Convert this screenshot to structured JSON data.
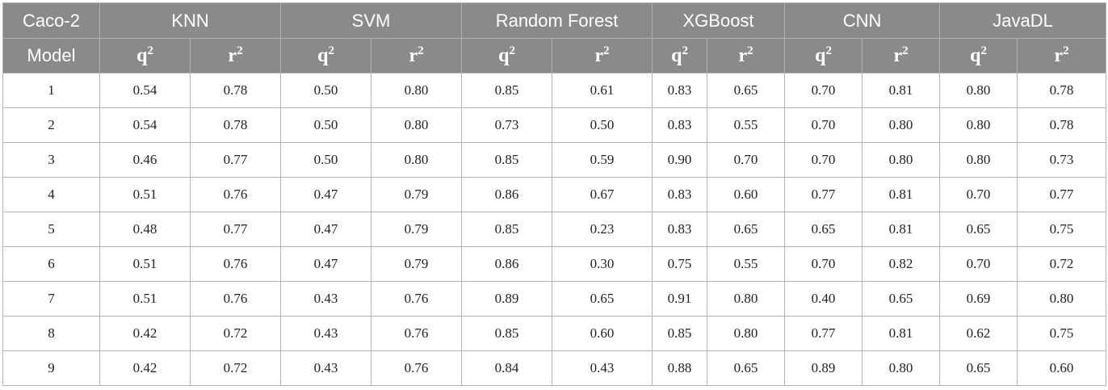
{
  "table": {
    "corner_top": "Caco-2",
    "corner_bottom": "Model",
    "methods": [
      "KNN",
      "SVM",
      "Random Forest",
      "XGBoost",
      "CNN",
      "JavaDL"
    ],
    "metric_base": "q",
    "metric_base_r": "r",
    "metric_exp": "2",
    "rows": [
      {
        "model": "1",
        "values": [
          "0.54",
          "0.78",
          "0.50",
          "0.80",
          "0.85",
          "0.61",
          "0.83",
          "0.65",
          "0.70",
          "0.81",
          "0.80",
          "0.78"
        ]
      },
      {
        "model": "2",
        "values": [
          "0.54",
          "0.78",
          "0.50",
          "0.80",
          "0.73",
          "0.50",
          "0.83",
          "0.55",
          "0.70",
          "0.80",
          "0.80",
          "0.78"
        ]
      },
      {
        "model": "3",
        "values": [
          "0.46",
          "0.77",
          "0.50",
          "0.80",
          "0.85",
          "0.59",
          "0.90",
          "0.70",
          "0.70",
          "0.80",
          "0.80",
          "0.73"
        ]
      },
      {
        "model": "4",
        "values": [
          "0.51",
          "0.76",
          "0.47",
          "0.79",
          "0.86",
          "0.67",
          "0.83",
          "0.60",
          "0.77",
          "0.81",
          "0.70",
          "0.77"
        ]
      },
      {
        "model": "5",
        "values": [
          "0.48",
          "0.77",
          "0.47",
          "0.79",
          "0.85",
          "0.23",
          "0.83",
          "0.65",
          "0.65",
          "0.81",
          "0.65",
          "0.75"
        ]
      },
      {
        "model": "6",
        "values": [
          "0.51",
          "0.76",
          "0.47",
          "0.79",
          "0.86",
          "0.30",
          "0.75",
          "0.55",
          "0.70",
          "0.82",
          "0.70",
          "0.72"
        ]
      },
      {
        "model": "7",
        "values": [
          "0.51",
          "0.76",
          "0.43",
          "0.76",
          "0.89",
          "0.65",
          "0.91",
          "0.80",
          "0.40",
          "0.65",
          "0.69",
          "0.80"
        ]
      },
      {
        "model": "8",
        "values": [
          "0.42",
          "0.72",
          "0.43",
          "0.76",
          "0.85",
          "0.60",
          "0.85",
          "0.80",
          "0.77",
          "0.81",
          "0.62",
          "0.75"
        ]
      },
      {
        "model": "9",
        "values": [
          "0.42",
          "0.72",
          "0.43",
          "0.76",
          "0.84",
          "0.43",
          "0.88",
          "0.65",
          "0.89",
          "0.80",
          "0.65",
          "0.60"
        ]
      }
    ]
  },
  "colors": {
    "header_bg": "#8a8a8a",
    "header_text": "#ffffff",
    "border": "#b3b3b3",
    "cell_text": "#222222"
  }
}
